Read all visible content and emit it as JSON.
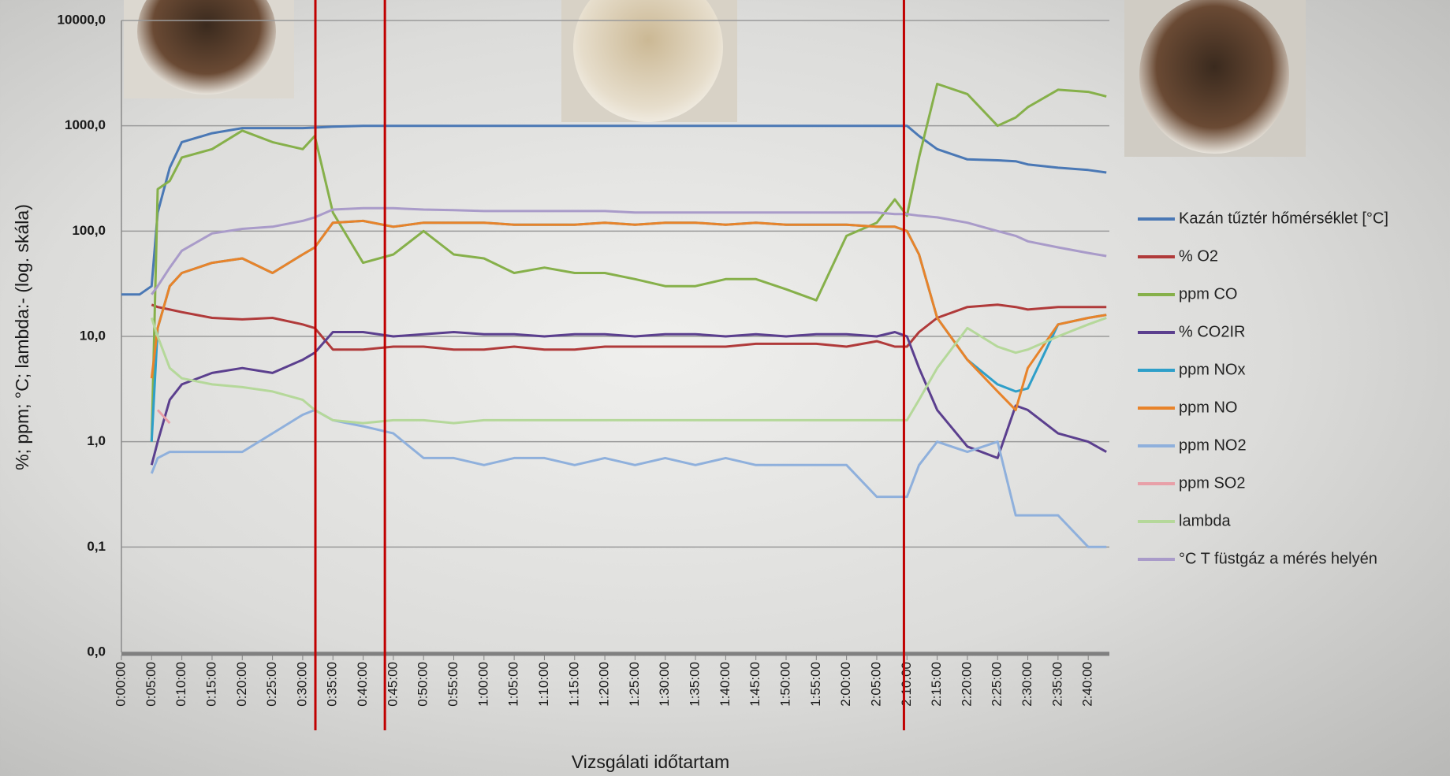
{
  "chart_data": {
    "type": "line",
    "y_label": "%; ppm; °C; lambda:-  (log. skála)",
    "x_label": "Vizsgálati időtartam",
    "log_y": true,
    "grid": true,
    "legend": "right",
    "xlim": [
      0,
      163.5
    ],
    "ylim": [
      0.01,
      10000
    ],
    "yticks": [
      {
        "value": 0.01,
        "label": "0,0"
      },
      {
        "value": 0.1,
        "label": "0,1"
      },
      {
        "value": 1,
        "label": "1,0"
      },
      {
        "value": 10,
        "label": "10,0"
      },
      {
        "value": 100,
        "label": "100,0"
      },
      {
        "value": 1000,
        "label": "1000,0"
      },
      {
        "value": 10000,
        "label": "10000,0"
      }
    ],
    "xticks": [
      {
        "value": 0,
        "label": "0:00:00"
      },
      {
        "value": 5,
        "label": "0:05:00"
      },
      {
        "value": 10,
        "label": "0:10:00"
      },
      {
        "value": 15,
        "label": "0:15:00"
      },
      {
        "value": 20,
        "label": "0:20:00"
      },
      {
        "value": 25,
        "label": "0:25:00"
      },
      {
        "value": 30,
        "label": "0:30:00"
      },
      {
        "value": 35,
        "label": "0:35:00"
      },
      {
        "value": 40,
        "label": "0:40:00"
      },
      {
        "value": 45,
        "label": "0:45:00"
      },
      {
        "value": 50,
        "label": "0:50:00"
      },
      {
        "value": 55,
        "label": "0:55:00"
      },
      {
        "value": 60,
        "label": "1:00:00"
      },
      {
        "value": 65,
        "label": "1:05:00"
      },
      {
        "value": 70,
        "label": "1:10:00"
      },
      {
        "value": 75,
        "label": "1:15:00"
      },
      {
        "value": 80,
        "label": "1:20:00"
      },
      {
        "value": 85,
        "label": "1:25:00"
      },
      {
        "value": 90,
        "label": "1:30:00"
      },
      {
        "value": 95,
        "label": "1:35:00"
      },
      {
        "value": 100,
        "label": "1:40:00"
      },
      {
        "value": 105,
        "label": "1:45:00"
      },
      {
        "value": 110,
        "label": "1:50:00"
      },
      {
        "value": 115,
        "label": "1:55:00"
      },
      {
        "value": 120,
        "label": "2:00:00"
      },
      {
        "value": 125,
        "label": "2:05:00"
      },
      {
        "value": 130,
        "label": "2:10:00"
      },
      {
        "value": 135,
        "label": "2:15:00"
      },
      {
        "value": 140,
        "label": "2:20:00"
      },
      {
        "value": 145,
        "label": "2:25:00"
      },
      {
        "value": 150,
        "label": "2:30:00"
      },
      {
        "value": 155,
        "label": "2:35:00"
      },
      {
        "value": 160,
        "label": "2:40:00"
      }
    ],
    "x": [
      0,
      3,
      5,
      6,
      8,
      10,
      15,
      20,
      25,
      30,
      32,
      35,
      40,
      45,
      50,
      55,
      60,
      65,
      70,
      75,
      80,
      85,
      90,
      95,
      100,
      105,
      110,
      115,
      120,
      125,
      128,
      130,
      132,
      135,
      140,
      145,
      148,
      150,
      155,
      160,
      163
    ],
    "series": [
      {
        "name": "Kazán tűztér hőmérséklet [°C]",
        "color": "#4a78b5",
        "values": [
          25,
          25,
          30,
          150,
          400,
          700,
          850,
          950,
          950,
          950,
          960,
          980,
          1000,
          1000,
          1000,
          1000,
          1000,
          1000,
          1000,
          1000,
          1000,
          1000,
          1000,
          1000,
          1000,
          1000,
          1000,
          1000,
          1000,
          1000,
          1000,
          1000,
          800,
          600,
          480,
          470,
          460,
          430,
          400,
          380,
          360
        ]
      },
      {
        "name": "% O2",
        "color": "#b03a3a",
        "values": [
          null,
          null,
          20,
          19,
          18,
          17,
          15,
          14.5,
          15,
          13,
          12,
          7.5,
          7.5,
          8,
          8,
          7.5,
          7.5,
          8,
          7.5,
          7.5,
          8,
          8,
          8,
          8,
          8,
          8.5,
          8.5,
          8.5,
          8,
          9,
          8,
          8,
          11,
          15,
          19,
          20,
          19,
          18,
          19,
          19,
          19
        ]
      },
      {
        "name": "ppm CO",
        "color": "#86b04a",
        "values": [
          null,
          null,
          1,
          250,
          300,
          500,
          600,
          900,
          700,
          600,
          800,
          150,
          50,
          60,
          100,
          60,
          55,
          40,
          45,
          40,
          40,
          35,
          30,
          30,
          35,
          35,
          28,
          22,
          90,
          120,
          200,
          140,
          500,
          2500,
          2000,
          1000,
          1200,
          1500,
          2200,
          2100,
          1900
        ]
      },
      {
        "name": "% CO2IR",
        "color": "#5b3f8e",
        "values": [
          null,
          null,
          0.6,
          1,
          2.5,
          3.5,
          4.5,
          5,
          4.5,
          6,
          7,
          11,
          11,
          10,
          10.5,
          11,
          10.5,
          10.5,
          10,
          10.5,
          10.5,
          10,
          10.5,
          10.5,
          10,
          10.5,
          10,
          10.5,
          10.5,
          10,
          11,
          10,
          5,
          2,
          0.9,
          0.7,
          2.2,
          2,
          1.2,
          1,
          0.8
        ]
      },
      {
        "name": "ppm NOx",
        "color": "#2e9fc9",
        "values": [
          null,
          null,
          1,
          12,
          30,
          40,
          50,
          55,
          40,
          60,
          70,
          120,
          125,
          110,
          120,
          120,
          120,
          115,
          115,
          115,
          120,
          115,
          120,
          120,
          115,
          120,
          115,
          115,
          115,
          110,
          110,
          100,
          60,
          15,
          6,
          3.5,
          3,
          3.2,
          13,
          15,
          16
        ]
      },
      {
        "name": "ppm NO",
        "color": "#e8832a",
        "values": [
          null,
          null,
          4,
          12,
          30,
          40,
          50,
          55,
          40,
          60,
          70,
          120,
          125,
          110,
          120,
          120,
          120,
          115,
          115,
          115,
          120,
          115,
          120,
          120,
          115,
          120,
          115,
          115,
          115,
          110,
          110,
          100,
          60,
          15,
          6,
          3,
          2,
          5,
          13,
          15,
          16
        ]
      },
      {
        "name": "ppm NO2",
        "color": "#8fb0dc",
        "values": [
          null,
          null,
          0.5,
          0.7,
          0.8,
          0.8,
          0.8,
          0.8,
          1.2,
          1.8,
          2,
          1.6,
          1.4,
          1.2,
          0.7,
          0.7,
          0.6,
          0.7,
          0.7,
          0.6,
          0.7,
          0.6,
          0.7,
          0.6,
          0.7,
          0.6,
          0.6,
          0.6,
          0.6,
          0.3,
          0.3,
          0.3,
          0.6,
          1,
          0.8,
          1,
          0.2,
          0.2,
          0.2,
          0.1,
          0.1
        ]
      },
      {
        "name": "ppm SO2",
        "color": "#e8a0a8",
        "values": [
          null,
          null,
          null,
          2,
          1.5,
          null,
          null,
          null,
          null,
          null,
          null,
          null,
          null,
          null,
          null,
          null,
          null,
          null,
          null,
          null,
          null,
          null,
          null,
          null,
          null,
          null,
          null,
          null,
          null,
          null,
          null,
          null,
          null,
          null,
          null,
          null,
          null,
          null,
          null,
          null,
          null
        ]
      },
      {
        "name": "lambda",
        "color": "#b5d89a",
        "values": [
          null,
          null,
          15,
          10,
          5,
          4,
          3.5,
          3.3,
          3,
          2.5,
          2,
          1.6,
          1.5,
          1.6,
          1.6,
          1.5,
          1.6,
          1.6,
          1.6,
          1.6,
          1.6,
          1.6,
          1.6,
          1.6,
          1.6,
          1.6,
          1.6,
          1.6,
          1.6,
          1.6,
          1.6,
          1.6,
          2.5,
          5,
          12,
          8,
          7,
          7.5,
          10,
          13,
          15
        ]
      },
      {
        "name": "°C T füstgáz a mérés helyén",
        "color": "#a99bc9",
        "values": [
          null,
          null,
          25,
          30,
          45,
          65,
          95,
          105,
          110,
          125,
          135,
          160,
          165,
          165,
          160,
          158,
          155,
          155,
          155,
          155,
          155,
          150,
          150,
          150,
          150,
          150,
          150,
          150,
          150,
          150,
          145,
          145,
          140,
          135,
          120,
          100,
          90,
          80,
          70,
          62,
          58
        ]
      }
    ],
    "vertical_lines": {
      "x": [
        32.1,
        43.6,
        129.5
      ],
      "color": "#c00000"
    }
  }
}
